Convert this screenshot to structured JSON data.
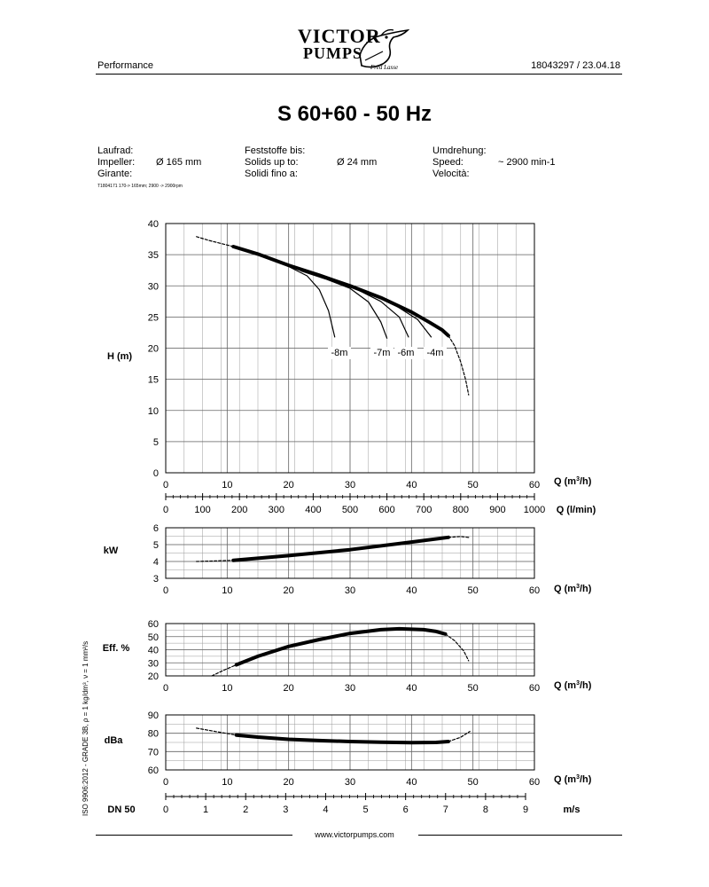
{
  "brand": {
    "line1": "VICTOR",
    "line2": "PUMPS",
    "signature": "Fred Lasse"
  },
  "header": {
    "left": "Performance",
    "right": "18043297 /   23.04.18"
  },
  "title": "S 60+60  - 50 Hz",
  "info": {
    "impeller": {
      "labels": [
        "Laufrad:",
        "Impeller:",
        "Girante:"
      ],
      "value": "Ø 165 mm"
    },
    "solids": {
      "labels": [
        "Feststoffe bis:",
        "Solids up to:",
        "Solidi fino a:"
      ],
      "value": "Ø 24 mm"
    },
    "speed": {
      "labels": [
        "Umdrehung:",
        "Speed:",
        "Velocità:"
      ],
      "value": "~ 2900 min-1"
    },
    "note": "T1804171 170-> 165mm; 2900 -> 2900rpm"
  },
  "footer": {
    "url": "www.victorpumps.com",
    "standard": "ISO 9906:2012 - GRADE 3B, ρ = 1 kg/dm³, ν = 1 mm²/s"
  },
  "colors": {
    "line": "#000000",
    "grid": "#9a9a9a"
  },
  "chart_data": [
    {
      "type": "line",
      "title": "H (m)",
      "ylabel": "H (m)",
      "xlabel": "Q (m³/h)",
      "xlabel_main": "Q (m",
      "xlabel_sup": "3",
      "xlabel_end": "/h)",
      "xlim": [
        0,
        60
      ],
      "ylim": [
        0,
        40
      ],
      "xticks": [
        0,
        10,
        20,
        30,
        40,
        50,
        60
      ],
      "yticks": [
        0,
        5,
        10,
        15,
        20,
        25,
        30,
        35,
        40
      ],
      "secondary_axis": {
        "label": "Q (l/min)",
        "ticks": [
          0,
          100,
          200,
          300,
          400,
          500,
          600,
          700,
          800,
          900,
          1000
        ]
      },
      "series": [
        {
          "name": "extrapolated-low",
          "style": "dashed",
          "x": [
            5,
            7,
            9,
            11
          ],
          "y": [
            37.9,
            37.3,
            36.8,
            36.3
          ]
        },
        {
          "name": "main",
          "style": "bold",
          "x": [
            11,
            15,
            20,
            25,
            30,
            35,
            40,
            43,
            45,
            46
          ],
          "y": [
            36.3,
            35.1,
            33.3,
            31.7,
            30.0,
            28.1,
            25.8,
            24.1,
            22.9,
            22.0
          ]
        },
        {
          "name": "extrapolated-high",
          "style": "dashed",
          "x": [
            46,
            47,
            48,
            48.8,
            49.3
          ],
          "y": [
            22.0,
            20.4,
            17.8,
            15.0,
            12.5
          ]
        },
        {
          "name": "-8m",
          "style": "thin",
          "x": [
            16,
            20,
            23,
            25,
            26.5,
            27.5
          ],
          "y": [
            34.7,
            33.1,
            31.6,
            29.4,
            26.0,
            21.8
          ]
        },
        {
          "name": "-7m",
          "style": "thin",
          "x": [
            22,
            26,
            30,
            33,
            35,
            36
          ],
          "y": [
            32.4,
            31.1,
            29.6,
            27.4,
            24.2,
            21.6
          ]
        },
        {
          "name": "-6m",
          "style": "thin",
          "x": [
            27,
            31,
            35,
            38,
            39.5
          ],
          "y": [
            30.8,
            29.5,
            27.5,
            25.0,
            21.8
          ]
        },
        {
          "name": "-4m",
          "style": "thin",
          "x": [
            33,
            37,
            41,
            43.2
          ],
          "y": [
            28.9,
            27.1,
            24.6,
            21.8
          ]
        }
      ],
      "annotations": [
        "-8m",
        "-7m",
        "-6m",
        "-4m"
      ]
    },
    {
      "type": "line",
      "title": "kW",
      "ylabel": "kW",
      "xlabel_main": "Q (m",
      "xlabel_sup": "3",
      "xlabel_end": "/h)",
      "xlim": [
        0,
        60
      ],
      "ylim": [
        3,
        6
      ],
      "xticks": [
        0,
        10,
        20,
        30,
        40,
        50,
        60
      ],
      "yticks": [
        3,
        4,
        5,
        6
      ],
      "series": [
        {
          "name": "extrapolated-low",
          "style": "dashed",
          "x": [
            5,
            8,
            11
          ],
          "y": [
            4.0,
            4.03,
            4.07
          ]
        },
        {
          "name": "main",
          "style": "bold",
          "x": [
            11,
            20,
            30,
            40,
            46
          ],
          "y": [
            4.07,
            4.35,
            4.7,
            5.15,
            5.43
          ]
        },
        {
          "name": "extrapolated-high",
          "style": "dashed",
          "x": [
            46,
            48,
            49.5
          ],
          "y": [
            5.43,
            5.48,
            5.42
          ]
        }
      ]
    },
    {
      "type": "line",
      "title": "Eff. %",
      "ylabel": "Eff. %",
      "xlabel_main": "Q (m",
      "xlabel_sup": "3",
      "xlabel_end": "/h)",
      "xlim": [
        0,
        60
      ],
      "ylim": [
        20,
        60
      ],
      "xticks": [
        0,
        10,
        20,
        30,
        40,
        50,
        60
      ],
      "yticks": [
        20,
        30,
        40,
        50,
        60
      ],
      "series": [
        {
          "name": "extrapolated-low",
          "style": "dashed",
          "x": [
            7.5,
            9.5,
            11.5
          ],
          "y": [
            20.0,
            24.5,
            28.5
          ]
        },
        {
          "name": "main",
          "style": "bold",
          "x": [
            11.5,
            15,
            20,
            25,
            30,
            35,
            38,
            42,
            44,
            45.5
          ],
          "y": [
            28.5,
            35.0,
            42.5,
            47.8,
            52.5,
            55.3,
            56.0,
            55.3,
            54.0,
            52.0
          ]
        },
        {
          "name": "extrapolated-high",
          "style": "dashed",
          "x": [
            45.5,
            47,
            48.5,
            49.3
          ],
          "y": [
            52.0,
            47.0,
            39.0,
            31.5
          ]
        }
      ]
    },
    {
      "type": "line",
      "title": "dBa",
      "ylabel": "dBa",
      "xlabel_main": "Q (m",
      "xlabel_sup": "3",
      "xlabel_end": "/h)",
      "xlim": [
        0,
        60
      ],
      "ylim": [
        60,
        90
      ],
      "xticks": [
        0,
        10,
        20,
        30,
        40,
        50,
        60
      ],
      "yticks": [
        60,
        70,
        80,
        90
      ],
      "secondary_axis": {
        "label": "m/s",
        "name": "DN 50",
        "ticks": [
          0,
          1,
          2,
          3,
          4,
          5,
          6,
          7,
          8,
          9
        ]
      },
      "series": [
        {
          "name": "extrapolated-low",
          "style": "dashed",
          "x": [
            5,
            8,
            11.5
          ],
          "y": [
            82.8,
            81.0,
            79.0
          ]
        },
        {
          "name": "main",
          "style": "bold",
          "x": [
            11.5,
            15,
            20,
            25,
            30,
            35,
            40,
            44,
            46
          ],
          "y": [
            79.0,
            77.9,
            76.7,
            76.0,
            75.5,
            75.1,
            74.9,
            75.0,
            75.5
          ]
        },
        {
          "name": "extrapolated-high",
          "style": "dashed",
          "x": [
            46,
            48,
            49.5
          ],
          "y": [
            75.5,
            77.8,
            81.0
          ]
        }
      ]
    }
  ]
}
